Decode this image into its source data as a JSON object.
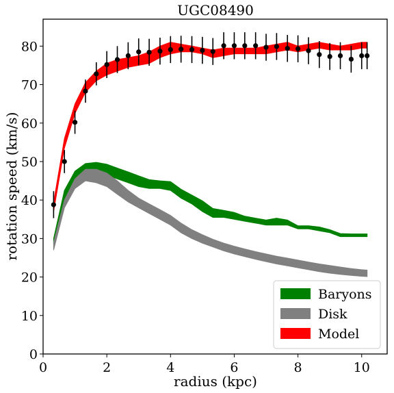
{
  "chart_data": {
    "type": "line",
    "title": "UGC08490",
    "xlabel": "radius (kpc)",
    "ylabel": "rotation speed (km/s)",
    "xlim": [
      0,
      10.8
    ],
    "ylim": [
      0,
      87
    ],
    "x_ticks": [
      0,
      2,
      4,
      6,
      8,
      10
    ],
    "y_ticks": [
      0,
      10,
      20,
      30,
      40,
      50,
      60,
      70,
      80
    ],
    "grid": false,
    "legend_position": "lower-right",
    "x": [
      0.33,
      0.67,
      1.0,
      1.33,
      1.67,
      2.0,
      2.33,
      2.67,
      3.0,
      3.33,
      3.67,
      4.0,
      4.33,
      4.67,
      5.0,
      5.33,
      5.67,
      6.0,
      6.33,
      6.67,
      7.0,
      7.33,
      7.67,
      8.0,
      8.33,
      8.67,
      9.0,
      9.33,
      9.67,
      10.0,
      10.17
    ],
    "series": [
      {
        "name": "Baryons",
        "color": "#008000",
        "lower": [
          28.5,
          40.0,
          45.5,
          47.5,
          47.0,
          46.5,
          45.5,
          44.5,
          43.5,
          43.0,
          43.0,
          42.5,
          40.5,
          39.0,
          37.0,
          35.5,
          35.5,
          35.0,
          34.5,
          34.0,
          33.5,
          33.5,
          33.5,
          32.5,
          32.5,
          32.0,
          31.5,
          30.5,
          30.5,
          30.5,
          30.5
        ],
        "upper": [
          30.0,
          42.5,
          47.5,
          49.5,
          49.8,
          49.3,
          48.3,
          47.3,
          46.3,
          45.3,
          45.0,
          44.8,
          42.8,
          41.3,
          39.8,
          37.8,
          37.3,
          36.8,
          35.8,
          35.3,
          34.8,
          35.3,
          34.8,
          33.3,
          33.3,
          33.0,
          32.3,
          31.3,
          31.2,
          31.2,
          31.2
        ]
      },
      {
        "name": "Disk",
        "color": "#808080",
        "lower": [
          27.0,
          38.0,
          43.0,
          45.0,
          44.5,
          43.5,
          41.5,
          39.5,
          38.0,
          36.5,
          35.0,
          33.5,
          31.5,
          30.0,
          28.8,
          27.8,
          26.8,
          26.0,
          25.3,
          24.6,
          24.0,
          23.4,
          22.9,
          22.4,
          21.9,
          21.4,
          21.0,
          20.7,
          20.4,
          20.2,
          20.1
        ],
        "upper": [
          29.0,
          40.0,
          45.5,
          48.0,
          48.0,
          47.0,
          45.0,
          42.5,
          40.5,
          39.0,
          37.5,
          36.0,
          34.0,
          32.3,
          31.0,
          29.8,
          28.8,
          28.0,
          27.3,
          26.6,
          26.0,
          25.4,
          24.9,
          24.4,
          23.9,
          23.4,
          23.0,
          22.6,
          22.2,
          21.9,
          21.8
        ]
      },
      {
        "name": "Model",
        "color": "#ff0000",
        "lower": [
          37.0,
          53.5,
          62.5,
          68.0,
          71.0,
          72.5,
          73.5,
          74.5,
          75.0,
          75.5,
          77.0,
          78.0,
          78.5,
          78.5,
          78.0,
          77.0,
          77.5,
          78.0,
          78.0,
          78.0,
          78.0,
          78.5,
          79.0,
          78.5,
          79.0,
          79.5,
          79.0,
          79.0,
          79.0,
          79.5,
          79.5
        ],
        "upper": [
          39.5,
          56.0,
          65.0,
          70.5,
          73.5,
          75.5,
          76.5,
          77.0,
          77.5,
          78.5,
          80.0,
          81.0,
          80.5,
          80.0,
          79.5,
          79.0,
          79.5,
          79.5,
          79.5,
          79.5,
          80.0,
          80.5,
          81.0,
          80.0,
          80.5,
          81.0,
          80.5,
          80.0,
          80.5,
          81.0,
          81.0
        ]
      },
      {
        "name": "",
        "kind": "observed",
        "color": "#000000",
        "values": [
          38.8,
          50.0,
          60.2,
          68.3,
          72.8,
          75.2,
          76.5,
          77.5,
          78.5,
          78.4,
          78.7,
          79.1,
          79.2,
          79.1,
          78.9,
          78.6,
          80.1,
          80.1,
          80.1,
          80.1,
          79.7,
          79.9,
          79.4,
          79.3,
          78.8,
          77.8,
          77.3,
          77.5,
          76.6,
          77.5,
          77.5
        ],
        "errors": [
          3.5,
          3.0,
          3.0,
          3.0,
          3.0,
          3.5,
          3.5,
          3.5,
          3.5,
          3.5,
          3.5,
          3.5,
          3.5,
          3.5,
          3.5,
          3.5,
          3.5,
          3.5,
          3.5,
          3.5,
          3.5,
          3.5,
          3.5,
          3.5,
          3.5,
          3.5,
          3.5,
          3.5,
          3.5,
          3.5,
          3.5
        ]
      }
    ],
    "legend": [
      "Baryons",
      "Disk",
      "Model"
    ]
  }
}
